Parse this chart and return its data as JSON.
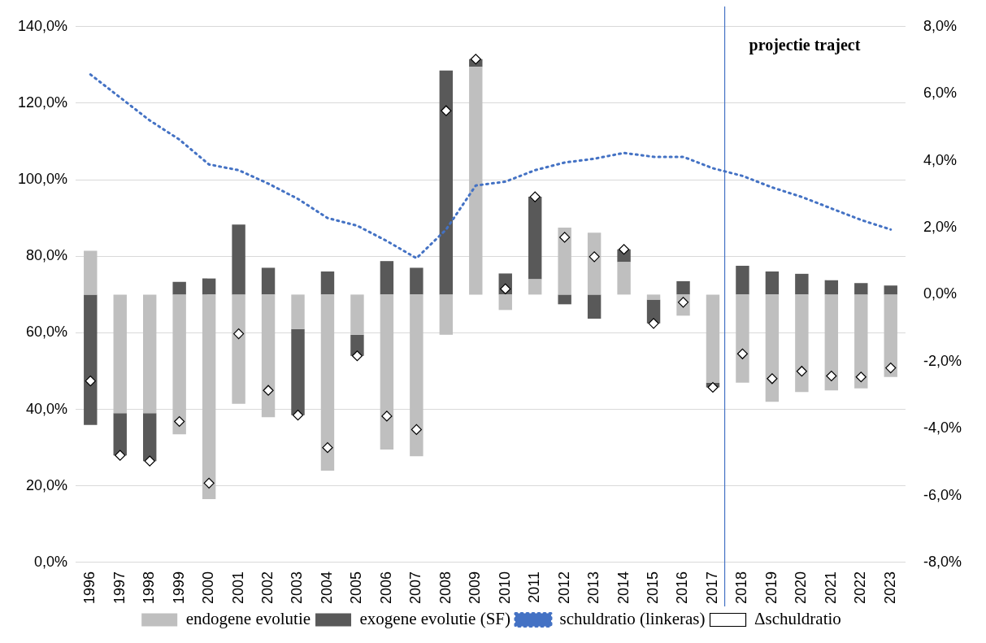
{
  "chart_data": {
    "type": "bar",
    "stacked": true,
    "categories": [
      "1996",
      "1997",
      "1998",
      "1999",
      "2000",
      "2001",
      "2002",
      "2003",
      "2004",
      "2005",
      "2006",
      "2007",
      "2008",
      "2009",
      "2010",
      "2011",
      "2012",
      "2013",
      "2014",
      "2015",
      "2016",
      "2017",
      "2018",
      "2019",
      "2020",
      "2021",
      "2022",
      "2023"
    ],
    "series": [
      {
        "name": "endogene evolutie",
        "axis": "y2",
        "color": "#bfbfbf",
        "values": [
          1.31,
          -3.54,
          -3.54,
          -4.17,
          -6.11,
          -3.26,
          -3.66,
          -1.03,
          -5.26,
          -1.2,
          -4.63,
          -4.83,
          -1.2,
          6.8,
          -0.46,
          0.46,
          2.0,
          1.85,
          0.97,
          -0.15,
          -0.63,
          -2.63,
          -2.63,
          -3.2,
          -2.91,
          -2.86,
          -2.8,
          -2.46
        ]
      },
      {
        "name": "exogene evolutie (SF)",
        "axis": "y2",
        "color": "#595959",
        "values": [
          -3.89,
          -1.26,
          -1.43,
          0.38,
          0.48,
          2.09,
          0.8,
          -2.57,
          0.69,
          -0.63,
          1.0,
          0.8,
          6.69,
          0.23,
          0.63,
          2.46,
          -0.29,
          -0.72,
          0.38,
          -0.71,
          0.4,
          -0.14,
          0.86,
          0.69,
          0.62,
          0.43,
          0.34,
          0.27
        ]
      },
      {
        "name": "schuldratio (linkeras)",
        "type": "line",
        "axis": "y",
        "color": "#4472c4",
        "line_style": "dotted",
        "marker": "none",
        "values": [
          127.5,
          121.5,
          115.5,
          110.5,
          104,
          102.5,
          99,
          95,
          90,
          88,
          84,
          79.5,
          87,
          98.5,
          99.5,
          102.5,
          104.5,
          105.5,
          107,
          106,
          106,
          103,
          101,
          98,
          95.5,
          92.5,
          89.5,
          87
        ]
      },
      {
        "name": "Δschuldratio",
        "type": "scatter",
        "axis": "y2",
        "color": "#ffffff",
        "marker": "diamond",
        "values": [
          -2.58,
          -4.8,
          -4.97,
          -3.79,
          -5.63,
          -1.17,
          -2.86,
          -3.6,
          -4.57,
          -1.83,
          -3.63,
          -4.03,
          5.49,
          7.03,
          0.17,
          2.92,
          1.71,
          1.13,
          1.35,
          -0.86,
          -0.23,
          -2.77,
          -1.77,
          -2.51,
          -2.29,
          -2.43,
          -2.46,
          -2.19
        ]
      }
    ],
    "ylim": [
      0,
      140
    ],
    "yticks": [
      {
        "value": 0,
        "label": "0,0%"
      },
      {
        "value": 20,
        "label": "20,0%"
      },
      {
        "value": 40,
        "label": "40,0%"
      },
      {
        "value": 60,
        "label": "60,0%"
      },
      {
        "value": 80,
        "label": "80,0%"
      },
      {
        "value": 100,
        "label": "100,0%"
      },
      {
        "value": 120,
        "label": "120,0%"
      },
      {
        "value": 140,
        "label": "140,0%"
      }
    ],
    "y2lim": [
      -8,
      8
    ],
    "y2ticks": [
      {
        "value": -8,
        "label": "-8,0%"
      },
      {
        "value": -6,
        "label": "-6,0%"
      },
      {
        "value": -4,
        "label": "-4,0%"
      },
      {
        "value": -2,
        "label": "-2,0%"
      },
      {
        "value": 0,
        "label": "0,0%"
      },
      {
        "value": 2,
        "label": "2,0%"
      },
      {
        "value": 4,
        "label": "4,0%"
      },
      {
        "value": 6,
        "label": "6,0%"
      },
      {
        "value": 8,
        "label": "8,0%"
      }
    ],
    "ref_lines": [
      {
        "axis": "x",
        "value": "2017",
        "label": "projectie traject",
        "color": "#4472c4",
        "line_style": "solid"
      }
    ],
    "grid": "y",
    "legend": "bottom"
  }
}
